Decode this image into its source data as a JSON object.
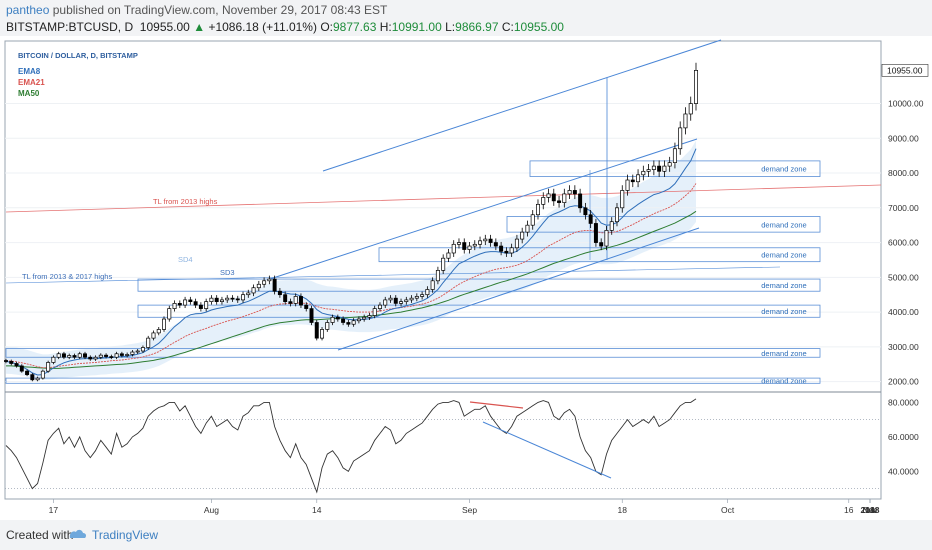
{
  "header": {
    "author": "pantheo",
    "published_text": "published on TradingView.com, November 29, 2017 08:43 EST",
    "symbol": "BITSTAMP:BTCUSD, D",
    "last": "10955.00",
    "change": "+1086.18 (+11.01%)",
    "o_label": "O:",
    "o_value": "9877.63",
    "h_label": "H:",
    "h_value": "10991.00",
    "l_label": "L:",
    "l_value": "9866.97",
    "c_label": "C:",
    "c_value": "10955.00"
  },
  "footer": {
    "created": "Created with",
    "brand": "TradingView"
  },
  "colors": {
    "candle_up": "#ffffff",
    "candle_down": "#000000",
    "ema8": "#2f6fba",
    "ema21": "#d9534f",
    "ma50": "#2e7d32",
    "trend_blue": "#4a86d6",
    "trend_red": "#e57373",
    "band": "#cfe3f5",
    "zone": "#5b8fd6"
  },
  "chart_data": [
    {
      "type": "candlestick",
      "title": "BITCOIN / DOLLAR, D, BITSTAMP",
      "legend": [
        "EMA8",
        "EMA21",
        "MA50"
      ],
      "x_ticks": [
        "17",
        "Aug",
        "14",
        "Sep",
        "18",
        "Oct",
        "16",
        "Nov",
        "14",
        "Dec",
        "18",
        "2018"
      ],
      "y_ticks": [
        "10000.00",
        "9000.00",
        "8000.00",
        "7000.00",
        "6000.00",
        "5000.00",
        "4000.00",
        "3000.00",
        "2000.00"
      ],
      "last_price_label": "10955.00",
      "ylim": [
        1700,
        11800
      ],
      "annotations": [
        "TL from 2013 highs",
        "TL from 2013 & 2017 highs",
        "SD4",
        "SD3"
      ],
      "zones": [
        {
          "label": "demand zone",
          "low": 7900,
          "high": 8350
        },
        {
          "label": "demand zone",
          "low": 6300,
          "high": 6750
        },
        {
          "label": "demand zone",
          "low": 5450,
          "high": 5850
        },
        {
          "label": "demand zone",
          "low": 4600,
          "high": 4950
        },
        {
          "label": "demand zone",
          "low": 3850,
          "high": 4200
        },
        {
          "label": "demand zone",
          "low": 2700,
          "high": 2950
        },
        {
          "label": "demand zone",
          "low": 1950,
          "high": 2100
        }
      ],
      "closes": [
        2580,
        2520,
        2450,
        2300,
        2200,
        2050,
        2100,
        2300,
        2550,
        2700,
        2800,
        2700,
        2750,
        2700,
        2800,
        2700,
        2650,
        2700,
        2760,
        2720,
        2700,
        2800,
        2750,
        2780,
        2850,
        2880,
        2980,
        3250,
        3400,
        3500,
        3800,
        4100,
        4250,
        4200,
        4350,
        4300,
        4200,
        4100,
        4300,
        4400,
        4300,
        4350,
        4400,
        4380,
        4350,
        4500,
        4550,
        4700,
        4800,
        4900,
        4950,
        4600,
        4500,
        4300,
        4250,
        4450,
        4200,
        4100,
        3700,
        3250,
        3500,
        3700,
        3850,
        3800,
        3700,
        3650,
        3750,
        3800,
        3850,
        3900,
        4100,
        4200,
        4350,
        4400,
        4250,
        4300,
        4350,
        4400,
        4450,
        4500,
        4650,
        4900,
        5200,
        5550,
        5700,
        5950,
        6000,
        5800,
        5900,
        5950,
        6050,
        6100,
        6000,
        5900,
        5750,
        5700,
        5850,
        6100,
        6300,
        6500,
        6800,
        7100,
        7300,
        7400,
        7200,
        7150,
        7400,
        7500,
        7400,
        7000,
        6800,
        6550,
        6000,
        5900,
        6350,
        6600,
        7000,
        7500,
        7800,
        7750,
        7950,
        8050,
        8100,
        8200,
        8050,
        8200,
        8300,
        8700,
        9300,
        9700,
        10000,
        10955
      ],
      "ema8": [
        2580,
        2550,
        2510,
        2430,
        2350,
        2250,
        2190,
        2200,
        2290,
        2390,
        2470,
        2540,
        2590,
        2620,
        2650,
        2660,
        2660,
        2660,
        2670,
        2680,
        2690,
        2710,
        2720,
        2730,
        2750,
        2790,
        2830,
        2920,
        3000,
        3100,
        3250,
        3420,
        3580,
        3700,
        3840,
        3920,
        3950,
        3960,
        4000,
        4060,
        4100,
        4130,
        4160,
        4180,
        4200,
        4260,
        4310,
        4380,
        4450,
        4530,
        4600,
        4600,
        4590,
        4550,
        4520,
        4510,
        4460,
        4380,
        4250,
        4070,
        3970,
        3930,
        3900,
        3870,
        3830,
        3790,
        3780,
        3780,
        3790,
        3810,
        3850,
        3910,
        4000,
        4070,
        4110,
        4140,
        4180,
        4220,
        4270,
        4320,
        4400,
        4510,
        4650,
        4850,
        5030,
        5220,
        5390,
        5460,
        5540,
        5610,
        5670,
        5720,
        5740,
        5740,
        5720,
        5690,
        5700,
        5750,
        5870,
        6010,
        6180,
        6380,
        6570,
        6740,
        6820,
        6880,
        6950,
        7030,
        7060,
        7050,
        7000,
        6900,
        6740,
        6560,
        6500,
        6510,
        6580,
        6720,
        6880,
        6990,
        7100,
        7200,
        7290,
        7380,
        7420,
        7480,
        7560,
        7690,
        7910,
        8140,
        8350,
        8700
      ],
      "ema21": [
        2600,
        2590,
        2570,
        2540,
        2510,
        2470,
        2430,
        2400,
        2400,
        2420,
        2440,
        2460,
        2480,
        2500,
        2520,
        2530,
        2540,
        2550,
        2570,
        2580,
        2600,
        2610,
        2620,
        2640,
        2660,
        2680,
        2710,
        2750,
        2800,
        2860,
        2950,
        3040,
        3130,
        3210,
        3300,
        3370,
        3430,
        3480,
        3530,
        3590,
        3640,
        3690,
        3740,
        3780,
        3820,
        3870,
        3920,
        3980,
        4030,
        4100,
        4160,
        4200,
        4230,
        4240,
        4240,
        4260,
        4260,
        4250,
        4220,
        4160,
        4120,
        4090,
        4080,
        4060,
        4040,
        4020,
        4010,
        4000,
        4000,
        4000,
        4010,
        4030,
        4060,
        4090,
        4110,
        4130,
        4150,
        4170,
        4200,
        4230,
        4270,
        4330,
        4400,
        4490,
        4590,
        4700,
        4800,
        4880,
        4950,
        5020,
        5080,
        5140,
        5190,
        5230,
        5260,
        5280,
        5310,
        5350,
        5410,
        5480,
        5580,
        5680,
        5790,
        5900,
        5980,
        6060,
        6140,
        6220,
        6290,
        6330,
        6350,
        6350,
        6320,
        6280,
        6280,
        6290,
        6320,
        6380,
        6450,
        6520,
        6600,
        6680,
        6750,
        6830,
        6890,
        6950,
        7020,
        7110,
        7220,
        7350,
        7480,
        7700
      ],
      "ma50": [
        2450,
        2450,
        2440,
        2430,
        2420,
        2410,
        2400,
        2390,
        2380,
        2380,
        2380,
        2390,
        2400,
        2410,
        2420,
        2430,
        2440,
        2450,
        2460,
        2470,
        2480,
        2490,
        2500,
        2510,
        2530,
        2550,
        2570,
        2590,
        2610,
        2640,
        2670,
        2710,
        2750,
        2800,
        2840,
        2890,
        2940,
        2990,
        3040,
        3090,
        3140,
        3190,
        3240,
        3290,
        3340,
        3390,
        3440,
        3490,
        3540,
        3590,
        3630,
        3660,
        3690,
        3710,
        3730,
        3750,
        3770,
        3780,
        3780,
        3780,
        3790,
        3800,
        3810,
        3820,
        3830,
        3840,
        3850,
        3860,
        3870,
        3880,
        3900,
        3920,
        3940,
        3960,
        3980,
        4000,
        4030,
        4060,
        4090,
        4120,
        4160,
        4200,
        4240,
        4290,
        4340,
        4400,
        4460,
        4510,
        4560,
        4610,
        4660,
        4710,
        4760,
        4810,
        4860,
        4900,
        4950,
        5000,
        5050,
        5100,
        5160,
        5220,
        5280,
        5340,
        5400,
        5450,
        5500,
        5550,
        5600,
        5650,
        5700,
        5740,
        5770,
        5800,
        5840,
        5880,
        5920,
        5970,
        6020,
        6080,
        6140,
        6200,
        6260,
        6320,
        6380,
        6440,
        6500,
        6560,
        6640,
        6720,
        6800,
        6900
      ]
    },
    {
      "type": "line",
      "title": "",
      "y_ticks": [
        "80.0000",
        "60.0000",
        "40.0000"
      ],
      "ylim": [
        24,
        86
      ],
      "values": [
        55,
        52,
        48,
        42,
        36,
        30,
        33,
        45,
        58,
        62,
        65,
        56,
        60,
        54,
        60,
        52,
        48,
        52,
        58,
        54,
        50,
        62,
        54,
        56,
        60,
        62,
        65,
        72,
        75,
        77,
        78,
        80,
        80,
        75,
        78,
        72,
        66,
        62,
        68,
        72,
        66,
        68,
        70,
        66,
        64,
        72,
        74,
        78,
        78,
        80,
        80,
        66,
        58,
        52,
        48,
        56,
        48,
        44,
        36,
        28,
        42,
        50,
        52,
        48,
        42,
        40,
        46,
        48,
        50,
        52,
        58,
        62,
        66,
        64,
        56,
        58,
        62,
        64,
        66,
        68,
        72,
        76,
        79,
        80,
        80,
        81,
        80,
        72,
        74,
        76,
        76,
        78,
        72,
        68,
        64,
        62,
        66,
        72,
        74,
        76,
        78,
        80,
        81,
        80,
        72,
        70,
        74,
        76,
        72,
        60,
        52,
        48,
        40,
        38,
        50,
        58,
        62,
        66,
        70,
        66,
        68,
        70,
        68,
        72,
        66,
        68,
        70,
        74,
        78,
        80,
        80,
        82
      ]
    }
  ]
}
